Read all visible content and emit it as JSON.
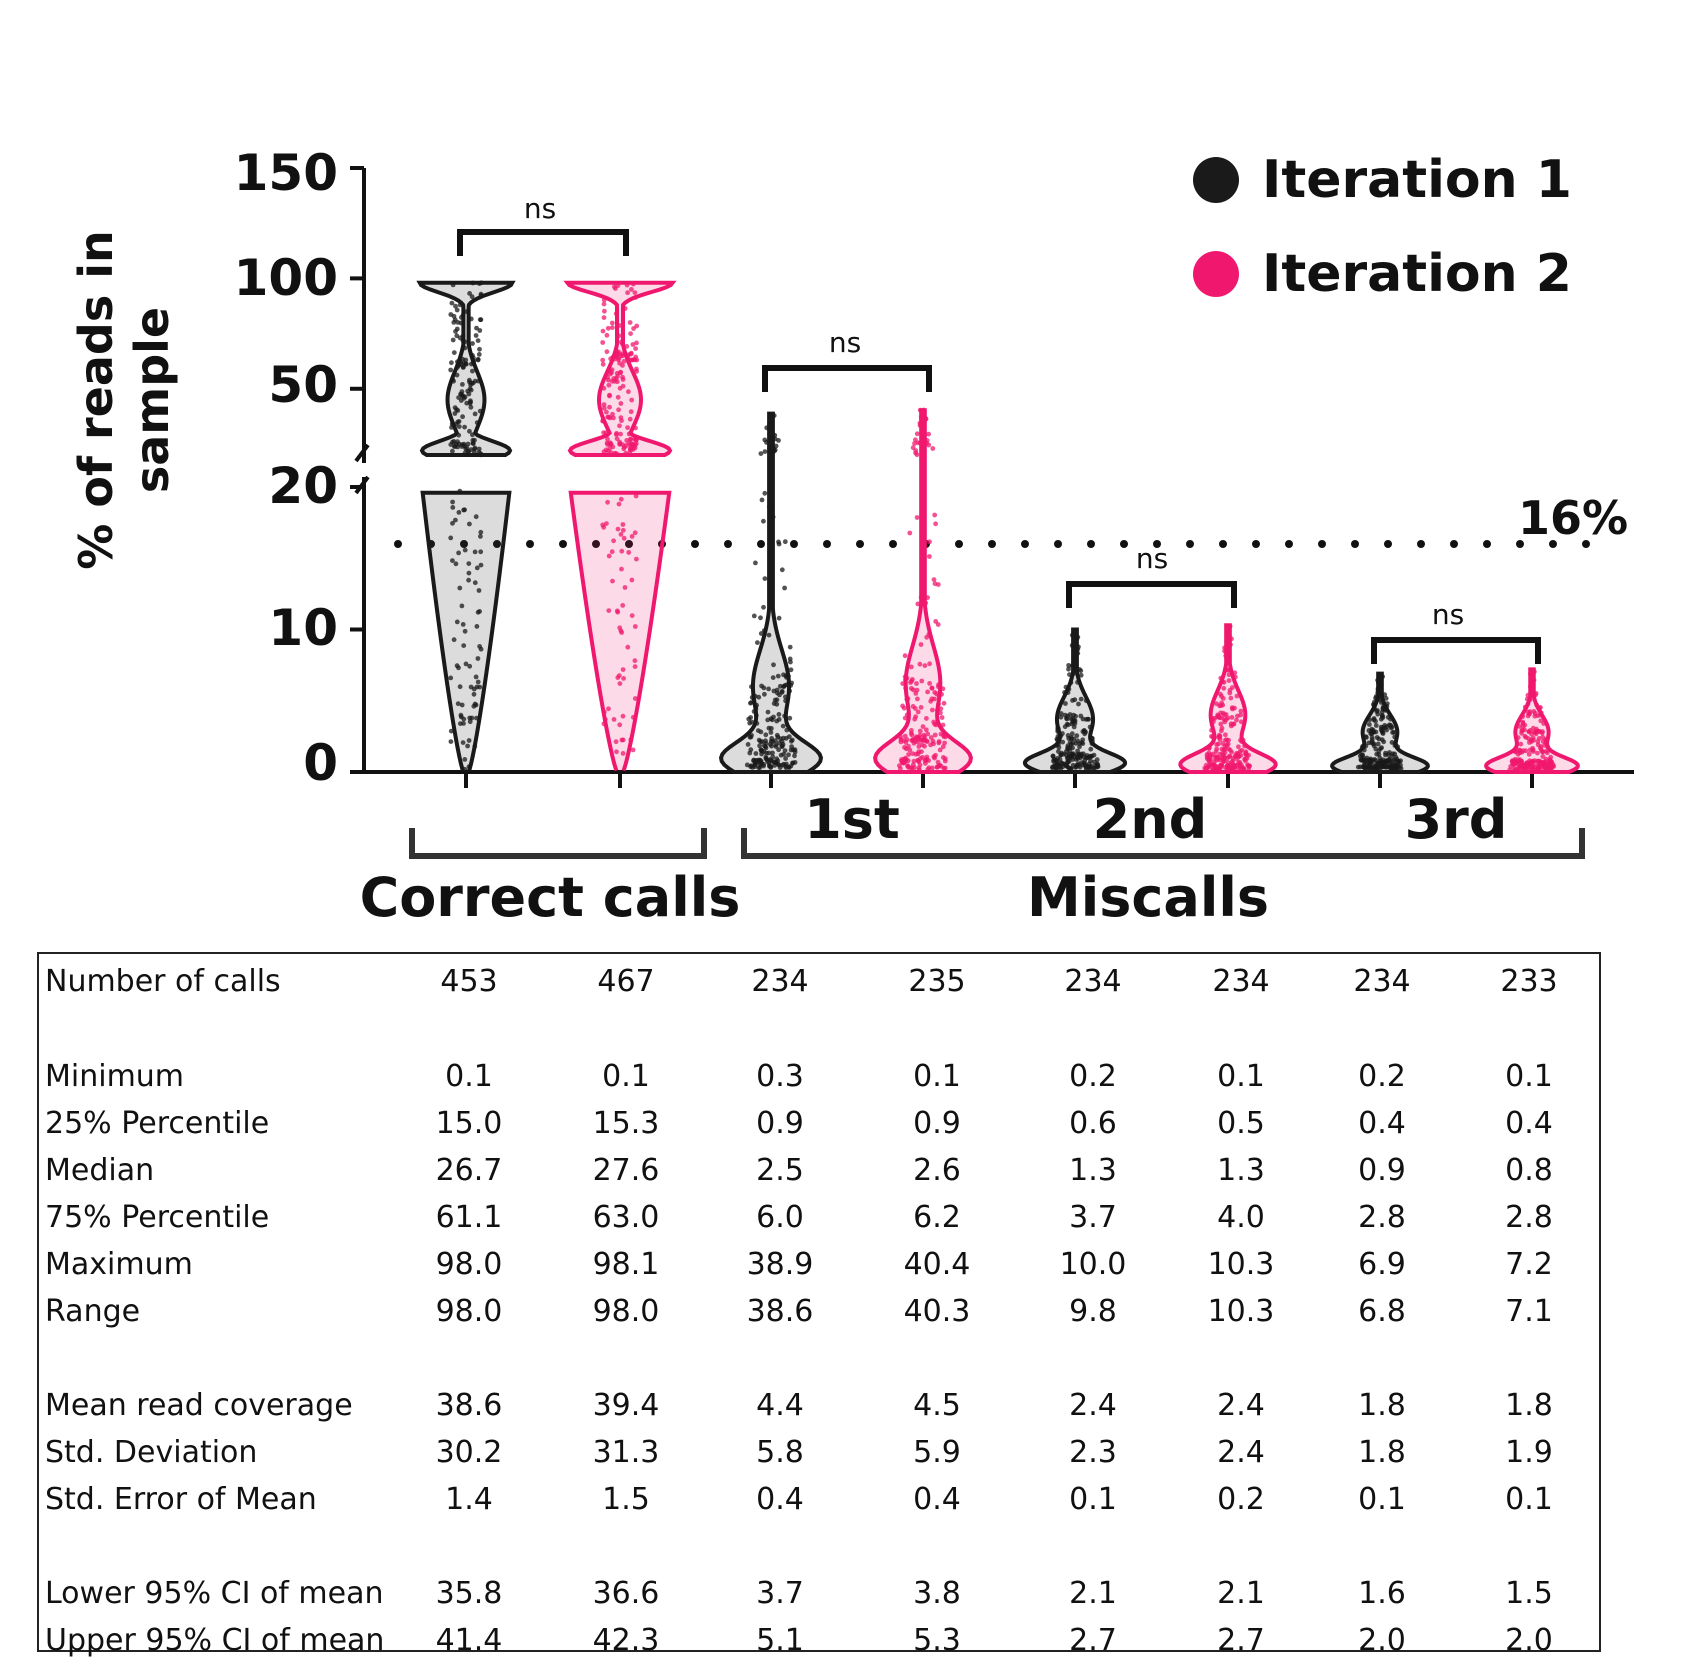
{
  "chart_data": {
    "type": "violin",
    "ylabel": [
      "% of reads in",
      "sample"
    ],
    "y_ticks": [
      "0",
      "10",
      "20",
      "50",
      "100",
      "150"
    ],
    "y_axis_break": {
      "lower_range": [
        0,
        20
      ],
      "upper_range": [
        20,
        150
      ]
    },
    "threshold_line": {
      "value": 16,
      "label": "16%"
    },
    "legend": [
      {
        "name": "Iteration 1",
        "color": "#1a1a1a"
      },
      {
        "name": "Iteration 2",
        "color": "#f0186e"
      }
    ],
    "categories": [
      "1st",
      "2nd",
      "3rd"
    ],
    "groups": [
      {
        "label": "Correct calls"
      },
      {
        "label": "Miscalls"
      }
    ],
    "significance": [
      "ns",
      "ns",
      "ns",
      "ns"
    ],
    "series": [
      {
        "name": "Correct calls - Iteration 1",
        "iteration": 1,
        "n": 453,
        "min": 0.1,
        "q1": 15.0,
        "median": 26.7,
        "q3": 61.1,
        "max": 98.0
      },
      {
        "name": "Correct calls - Iteration 2",
        "iteration": 2,
        "n": 467,
        "min": 0.1,
        "q1": 15.3,
        "median": 27.6,
        "q3": 63.0,
        "max": 98.1
      },
      {
        "name": "1st - Iteration 1",
        "iteration": 1,
        "n": 234,
        "min": 0.3,
        "q1": 0.9,
        "median": 2.5,
        "q3": 6.0,
        "max": 38.9
      },
      {
        "name": "1st - Iteration 2",
        "iteration": 2,
        "n": 235,
        "min": 0.1,
        "q1": 0.9,
        "median": 2.6,
        "q3": 6.2,
        "max": 40.4
      },
      {
        "name": "2nd - Iteration 1",
        "iteration": 1,
        "n": 234,
        "min": 0.2,
        "q1": 0.6,
        "median": 1.3,
        "q3": 3.7,
        "max": 10.0
      },
      {
        "name": "2nd - Iteration 2",
        "iteration": 2,
        "n": 234,
        "min": 0.1,
        "q1": 0.5,
        "median": 1.3,
        "q3": 4.0,
        "max": 10.3
      },
      {
        "name": "3rd - Iteration 1",
        "iteration": 1,
        "n": 234,
        "min": 0.2,
        "q1": 0.4,
        "median": 0.9,
        "q3": 2.8,
        "max": 6.9
      },
      {
        "name": "3rd - Iteration 2",
        "iteration": 2,
        "n": 233,
        "min": 0.1,
        "q1": 0.4,
        "median": 0.8,
        "q3": 2.8,
        "max": 7.2
      }
    ]
  },
  "stats_table": {
    "rows": [
      {
        "label": "Number of calls",
        "values": [
          "453",
          "467",
          "234",
          "235",
          "234",
          "234",
          "234",
          "233"
        ]
      },
      {
        "label": "Minimum",
        "values": [
          "0.1",
          "0.1",
          "0.3",
          "0.1",
          "0.2",
          "0.1",
          "0.2",
          "0.1"
        ]
      },
      {
        "label": "25% Percentile",
        "values": [
          "15.0",
          "15.3",
          "0.9",
          "0.9",
          "0.6",
          "0.5",
          "0.4",
          "0.4"
        ]
      },
      {
        "label": "Median",
        "values": [
          "26.7",
          "27.6",
          "2.5",
          "2.6",
          "1.3",
          "1.3",
          "0.9",
          "0.8"
        ]
      },
      {
        "label": "75% Percentile",
        "values": [
          "61.1",
          "63.0",
          "6.0",
          "6.2",
          "3.7",
          "4.0",
          "2.8",
          "2.8"
        ]
      },
      {
        "label": "Maximum",
        "values": [
          "98.0",
          "98.1",
          "38.9",
          "40.4",
          "10.0",
          "10.3",
          "6.9",
          "7.2"
        ]
      },
      {
        "label": "Range",
        "values": [
          "98.0",
          "98.0",
          "38.6",
          "40.3",
          "9.8",
          "10.3",
          "6.8",
          "7.1"
        ]
      },
      {
        "label": "Mean read coverage",
        "values": [
          "38.6",
          "39.4",
          "4.4",
          "4.5",
          "2.4",
          "2.4",
          "1.8",
          "1.8"
        ]
      },
      {
        "label": "Std. Deviation",
        "values": [
          "30.2",
          "31.3",
          "5.8",
          "5.9",
          "2.3",
          "2.4",
          "1.8",
          "1.9"
        ]
      },
      {
        "label": "Std. Error of Mean",
        "values": [
          "1.4",
          "1.5",
          "0.4",
          "0.4",
          "0.1",
          "0.2",
          "0.1",
          "0.1"
        ]
      },
      {
        "label": "Lower 95% CI of mean",
        "values": [
          "35.8",
          "36.6",
          "3.7",
          "3.8",
          "2.1",
          "2.1",
          "1.6",
          "1.5"
        ]
      },
      {
        "label": "Upper 95% CI of mean",
        "values": [
          "41.4",
          "42.3",
          "5.1",
          "5.3",
          "2.7",
          "2.7",
          "2.0",
          "2.0"
        ]
      }
    ]
  }
}
